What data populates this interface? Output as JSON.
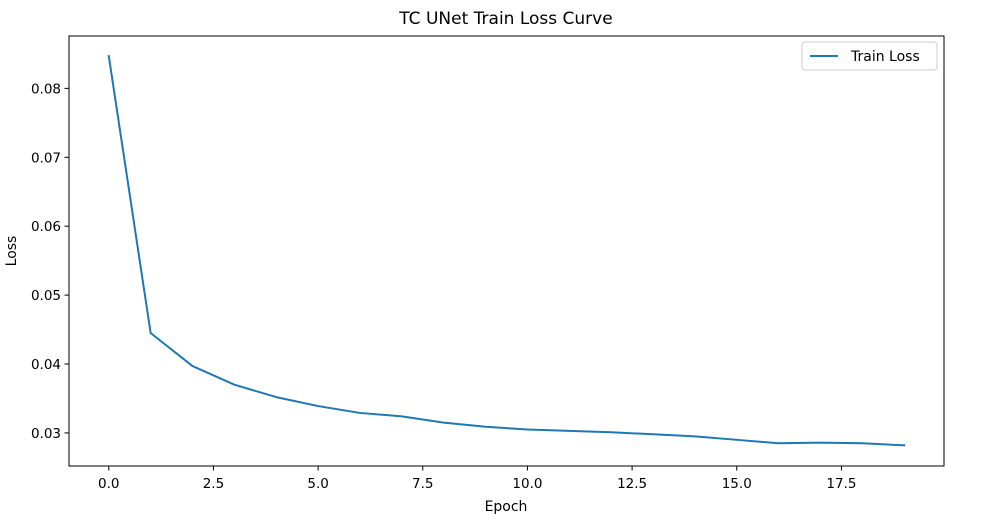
{
  "chart_data": {
    "type": "line",
    "title": "TC UNet Train Loss Curve",
    "xlabel": "Epoch",
    "ylabel": "Loss",
    "xlim": [
      -0.95,
      19.95
    ],
    "ylim": [
      0.0252,
      0.0876
    ],
    "xticks": [
      0.0,
      2.5,
      5.0,
      7.5,
      10.0,
      12.5,
      15.0,
      17.5
    ],
    "xtick_labels": [
      "0.0",
      "2.5",
      "5.0",
      "7.5",
      "10.0",
      "12.5",
      "15.0",
      "17.5"
    ],
    "yticks": [
      0.03,
      0.04,
      0.05,
      0.06,
      0.07,
      0.08
    ],
    "ytick_labels": [
      "0.03",
      "0.04",
      "0.05",
      "0.06",
      "0.07",
      "0.08"
    ],
    "grid": false,
    "legend_position": "top-right",
    "series": [
      {
        "name": "Train Loss",
        "color": "#1f77b4",
        "x": [
          0,
          1,
          2,
          3,
          4,
          5,
          6,
          7,
          8,
          9,
          10,
          11,
          12,
          13,
          14,
          15,
          16,
          17,
          18,
          19
        ],
        "y": [
          0.0847,
          0.0445,
          0.0397,
          0.037,
          0.0352,
          0.0339,
          0.0329,
          0.0324,
          0.0315,
          0.0309,
          0.0305,
          0.0303,
          0.0301,
          0.0298,
          0.0295,
          0.029,
          0.0285,
          0.0286,
          0.0285,
          0.0282
        ]
      }
    ]
  }
}
